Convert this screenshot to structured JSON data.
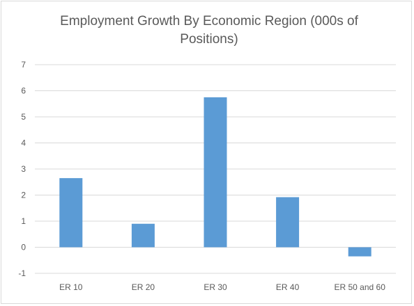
{
  "chart_data": {
    "type": "bar",
    "title": "Employment Growth By Economic Region (000s of Positions)",
    "categories": [
      "ER 10",
      "ER 20",
      "ER 30",
      "ER 40",
      "ER 50 and 60"
    ],
    "values": [
      2.65,
      0.9,
      5.75,
      1.92,
      -0.35
    ],
    "ylim": [
      -1,
      7
    ],
    "yticks": [
      "-1",
      "0",
      "1",
      "2",
      "3",
      "4",
      "5",
      "6",
      "7"
    ],
    "xlabel": "",
    "ylabel": "",
    "grid": true,
    "legend": "none",
    "bar_color": "#5b9bd5",
    "grid_color": "#d9d9d9"
  }
}
